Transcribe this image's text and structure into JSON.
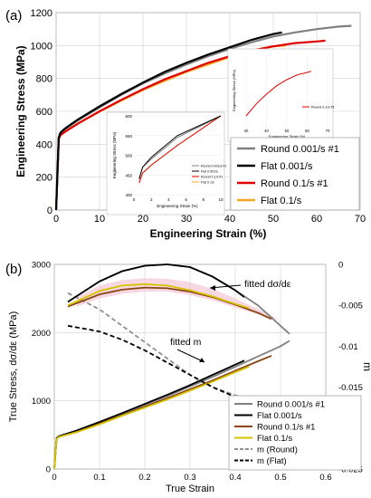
{
  "chart_data": [
    {
      "type": "line",
      "panel_label": "(a)",
      "xlabel": "Engineering Strain (%)",
      "ylabel": "Engineering Stress (MPa)",
      "xlim": [
        0,
        70
      ],
      "ylim": [
        0,
        1200
      ],
      "xticks": [
        "0",
        "10",
        "20",
        "30",
        "40",
        "50",
        "60",
        "70"
      ],
      "yticks": [
        "0",
        "200",
        "400",
        "600",
        "800",
        "1000",
        "1200"
      ],
      "grid": true,
      "legend_position": "right-middle",
      "series": [
        {
          "name": "Round 0.001/s #1",
          "color": "#808080",
          "x": [
            0,
            0.6,
            1,
            2,
            5,
            10,
            15,
            20,
            25,
            30,
            35,
            40,
            45,
            50,
            55,
            60,
            65,
            68
          ],
          "y": [
            0,
            440,
            470,
            490,
            545,
            625,
            700,
            770,
            830,
            885,
            935,
            980,
            1020,
            1055,
            1080,
            1100,
            1115,
            1120
          ]
        },
        {
          "name": "Flat 0.001/s",
          "color": "#000000",
          "x": [
            0,
            0.6,
            1,
            2,
            5,
            10,
            15,
            20,
            25,
            30,
            35,
            40,
            45,
            50,
            52
          ],
          "y": [
            0,
            440,
            470,
            495,
            550,
            630,
            705,
            775,
            840,
            895,
            945,
            990,
            1035,
            1070,
            1080
          ]
        },
        {
          "name": "Round 0.1/s #1",
          "color": "#e00000",
          "x": [
            0,
            0.6,
            1,
            2,
            5,
            10,
            15,
            20,
            25,
            30,
            35,
            40,
            45,
            50,
            55,
            60,
            62
          ],
          "y": [
            0,
            430,
            455,
            475,
            525,
            600,
            670,
            735,
            795,
            845,
            895,
            935,
            970,
            995,
            1015,
            1025,
            1030
          ]
        },
        {
          "name": "Flat 0.1/s",
          "color": "#f5a623",
          "x": [
            0,
            0.6,
            1,
            2,
            5,
            10,
            15,
            20,
            25,
            30,
            35,
            40,
            45,
            50,
            53
          ],
          "y": [
            0,
            430,
            455,
            475,
            525,
            600,
            665,
            730,
            785,
            840,
            885,
            930,
            970,
            995,
            1000
          ]
        }
      ],
      "inset1": {
        "xticks": [
          "0",
          "2",
          "4",
          "6",
          "8",
          "10"
        ],
        "yticks": [
          "400",
          "450",
          "500",
          "550",
          "600"
        ],
        "xlabel": "Engineering Strain (%)",
        "ylabel": "Engineering Stress (MPa)",
        "legend": [
          "Round 0.001/s #1",
          "Flat 0.001/s",
          "Round 0.1/s #1",
          "Flat 0.1/s"
        ]
      },
      "inset2": {
        "xticks": [
          "30",
          "40",
          "50",
          "60",
          "70"
        ],
        "xlabel": "Engineering Strain (%)",
        "ylabel": "Engineering Stress (MPa)",
        "legend": [
          "Round 0.1/s #1"
        ]
      }
    },
    {
      "type": "line",
      "panel_label": "(b)",
      "xlabel": "True Strain",
      "ylabel": "True Stress, dσ/dε (MPa)",
      "y2label": "m",
      "xlim": [
        0,
        0.6
      ],
      "ylim": [
        0,
        3000
      ],
      "y2lim": [
        -0.025,
        0
      ],
      "xticks": [
        "0",
        "0.1",
        "0.2",
        "0.3",
        "0.4",
        "0.5",
        "0.6"
      ],
      "yticks": [
        "0",
        "1000",
        "2000",
        "3000"
      ],
      "y2ticks": [
        "0",
        "-0.005",
        "-0.01",
        "-0.015",
        "-0.02",
        "-0.025"
      ],
      "grid": true,
      "legend_position": "bottom-right",
      "annotations": [
        "fitted dσ/dε",
        "fitted m"
      ],
      "series": [
        {
          "name": "Round 0.001/s #1",
          "color": "#808080",
          "style": "solid",
          "axis": "left",
          "x": [
            0,
            0.005,
            0.01,
            0.05,
            0.1,
            0.15,
            0.2,
            0.25,
            0.3,
            0.35,
            0.4,
            0.45,
            0.5,
            0.52
          ],
          "y": [
            0,
            450,
            480,
            560,
            680,
            810,
            940,
            1070,
            1210,
            1350,
            1500,
            1650,
            1800,
            1880
          ]
        },
        {
          "name": "Flat 0.001/s",
          "color": "#000000",
          "style": "solid",
          "axis": "left",
          "x": [
            0,
            0.005,
            0.01,
            0.05,
            0.1,
            0.15,
            0.2,
            0.25,
            0.3,
            0.35,
            0.4,
            0.42
          ],
          "y": [
            0,
            450,
            480,
            565,
            690,
            820,
            955,
            1090,
            1230,
            1380,
            1530,
            1590
          ]
        },
        {
          "name": "Round 0.1/s #1",
          "color": "#8b4513",
          "style": "solid",
          "axis": "left",
          "x": [
            0,
            0.005,
            0.01,
            0.05,
            0.1,
            0.15,
            0.2,
            0.25,
            0.3,
            0.35,
            0.4,
            0.45,
            0.48
          ],
          "y": [
            0,
            440,
            470,
            545,
            665,
            790,
            915,
            1040,
            1170,
            1300,
            1440,
            1580,
            1660
          ]
        },
        {
          "name": "Flat 0.1/s",
          "color": "#d4c400",
          "style": "solid",
          "axis": "left",
          "x": [
            0,
            0.005,
            0.01,
            0.05,
            0.1,
            0.15,
            0.2,
            0.25,
            0.3,
            0.35,
            0.4,
            0.43
          ],
          "y": [
            0,
            440,
            470,
            540,
            655,
            780,
            900,
            1020,
            1150,
            1280,
            1420,
            1500
          ]
        },
        {
          "name": "m (Round)",
          "color": "#909090",
          "style": "dashed",
          "axis": "right",
          "x": [
            0.03,
            0.1,
            0.15,
            0.2,
            0.25,
            0.3,
            0.35,
            0.4,
            0.45,
            0.48
          ],
          "y": [
            -0.0035,
            -0.0055,
            -0.0075,
            -0.0095,
            -0.0115,
            -0.0135,
            -0.015,
            -0.016,
            -0.0166,
            -0.0167
          ]
        },
        {
          "name": "m (Flat)",
          "color": "#000000",
          "style": "dashed",
          "axis": "right",
          "x": [
            0.03,
            0.1,
            0.15,
            0.2,
            0.25,
            0.3,
            0.35,
            0.4,
            0.42
          ],
          "y": [
            -0.0075,
            -0.0082,
            -0.0092,
            -0.0105,
            -0.012,
            -0.0135,
            -0.015,
            -0.0162,
            -0.0165
          ]
        },
        {
          "name": "",
          "role": "dσ/dε Round 0.001/s #1",
          "color": "#808080",
          "style": "solid",
          "axis": "left",
          "x": [
            0.03,
            0.1,
            0.15,
            0.2,
            0.25,
            0.3,
            0.35,
            0.4,
            0.45,
            0.5,
            0.52
          ],
          "y": [
            2450,
            2750,
            2900,
            2980,
            3000,
            2960,
            2820,
            2620,
            2400,
            2100,
            1980
          ]
        },
        {
          "name": "",
          "role": "dσ/dε Flat 0.001/s",
          "color": "#000000",
          "style": "solid",
          "axis": "left",
          "x": [
            0.03,
            0.1,
            0.15,
            0.2,
            0.25,
            0.3,
            0.35,
            0.4,
            0.42
          ],
          "y": [
            2450,
            2750,
            2900,
            2980,
            3000,
            2960,
            2820,
            2620,
            2520
          ]
        },
        {
          "name": "",
          "role": "dσ/dε Round 0.1/s #1",
          "color": "#8b4513",
          "style": "solid",
          "axis": "left",
          "x": [
            0.03,
            0.1,
            0.15,
            0.2,
            0.25,
            0.3,
            0.35,
            0.4,
            0.45,
            0.48
          ],
          "y": [
            2380,
            2560,
            2630,
            2660,
            2650,
            2600,
            2520,
            2410,
            2290,
            2200
          ]
        },
        {
          "name": "",
          "role": "dσ/dε Flat 0.1/s",
          "color": "#d4c400",
          "style": "solid",
          "axis": "left",
          "x": [
            0.03,
            0.1,
            0.15,
            0.2,
            0.25,
            0.3,
            0.35,
            0.4,
            0.43
          ],
          "y": [
            2400,
            2610,
            2690,
            2710,
            2690,
            2620,
            2530,
            2420,
            2360
          ]
        }
      ]
    }
  ]
}
